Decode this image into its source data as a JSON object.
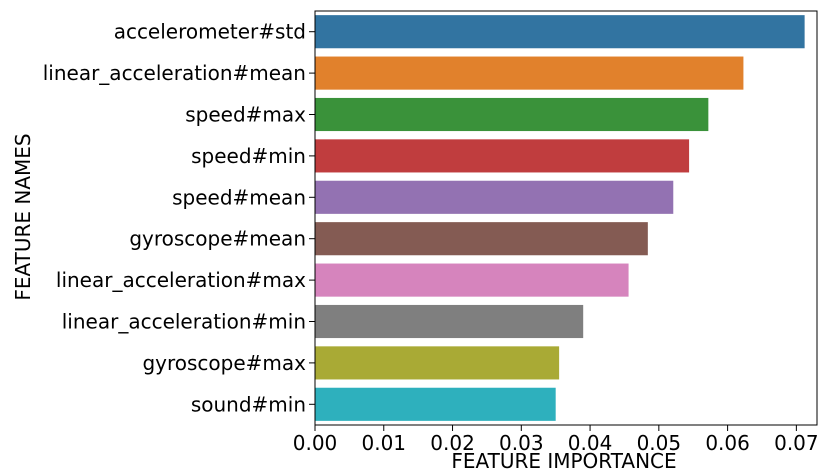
{
  "chart_data": {
    "type": "bar",
    "orientation": "horizontal",
    "title": "",
    "xlabel": "FEATURE IMPORTANCE",
    "ylabel": "FEATURE NAMES",
    "xlim": [
      0.0,
      0.073
    ],
    "xticks": [
      "0.00",
      "0.01",
      "0.02",
      "0.03",
      "0.04",
      "0.05",
      "0.06",
      "0.07"
    ],
    "categories": [
      "accelerometer#std",
      "linear_acceleration#mean",
      "speed#max",
      "speed#min",
      "speed#mean",
      "gyroscope#mean",
      "linear_acceleration#max",
      "linear_acceleration#min",
      "gyroscope#max",
      "sound#min"
    ],
    "values": [
      0.0712,
      0.0623,
      0.0572,
      0.0544,
      0.0521,
      0.0484,
      0.0456,
      0.039,
      0.0355,
      0.035
    ],
    "colors": [
      "#3274a1",
      "#e1812c",
      "#3a923a",
      "#c03d3e",
      "#9372b2",
      "#845b53",
      "#d684bd",
      "#7f7f7f",
      "#a9aa35",
      "#2eb0bd"
    ],
    "grid": false,
    "legend": "none"
  }
}
